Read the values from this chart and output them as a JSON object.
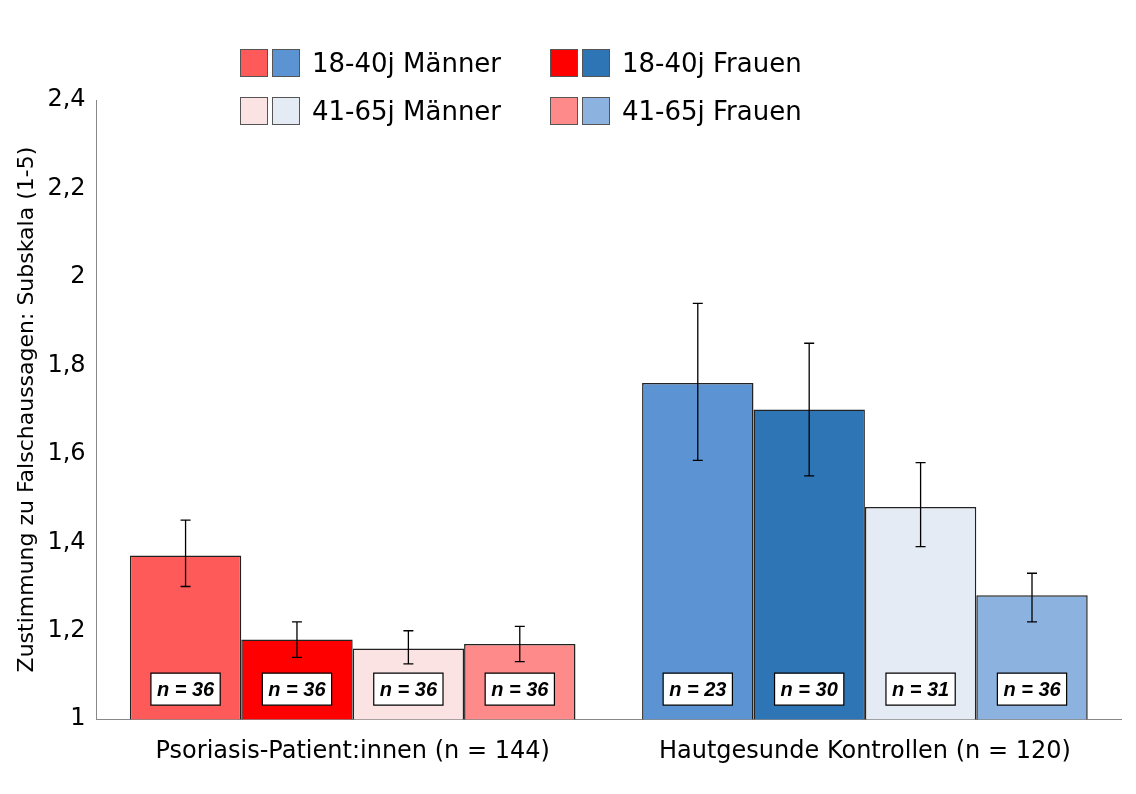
{
  "chart_data": {
    "type": "bar",
    "ylabel": "Zustimmung zu Falschaussagen: Subskala (1-5)",
    "categories": [
      "Psoriasis-Patient:innen (n = 144)",
      "Hautgesunde Kontrollen (n = 120)"
    ],
    "series": [
      {
        "name": "18-40j Männer",
        "colors": [
          "#ff5a5a",
          "#5b93d3"
        ],
        "values": [
          1.37,
          1.76
        ],
        "errors": [
          [
            1.3,
            1.45
          ],
          [
            1.585,
            1.94
          ]
        ]
      },
      {
        "name": "18-40j Frauen",
        "colors": [
          "#ff0000",
          "#2e75b6"
        ],
        "values": [
          1.18,
          1.7
        ],
        "errors": [
          [
            1.14,
            1.22
          ],
          [
            1.55,
            1.85
          ]
        ]
      },
      {
        "name": "41-65j Männer",
        "colors": [
          "#fbe3e3",
          "#e4ebf4"
        ],
        "values": [
          1.16,
          1.48
        ],
        "errors": [
          [
            1.125,
            1.2
          ],
          [
            1.39,
            1.58
          ]
        ]
      },
      {
        "name": "41-65j Frauen",
        "colors": [
          "#ff8a8a",
          "#8cb3e0"
        ],
        "values": [
          1.17,
          1.28
        ],
        "errors": [
          [
            1.13,
            1.21
          ],
          [
            1.22,
            1.33
          ]
        ]
      }
    ],
    "annotations": [
      "n = 36",
      "n = 36",
      "n = 36",
      "n = 36",
      "n = 23",
      "n = 30",
      "n = 31",
      "n = 36"
    ],
    "ylim": [
      1,
      2.4
    ],
    "yticks": [
      1,
      {
        "value": 1.2,
        "label": "1,2"
      },
      {
        "value": 1.4,
        "label": "1,4"
      },
      {
        "value": 1.6,
        "label": "1,6"
      },
      {
        "value": 1.8,
        "label": "1,8"
      },
      2,
      {
        "value": 2.2,
        "label": "2,2"
      },
      {
        "value": 2.4,
        "label": "2,4"
      }
    ],
    "grid": false,
    "legend": "top left"
  }
}
